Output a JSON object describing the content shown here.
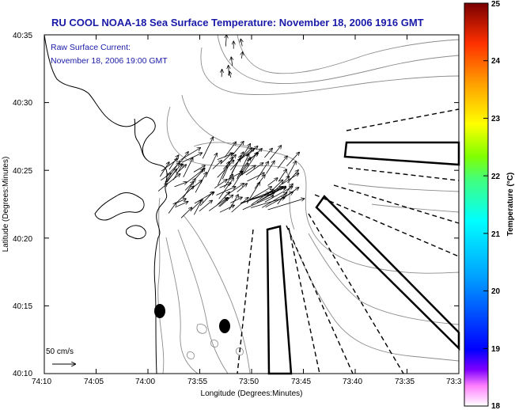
{
  "title": "RU COOL  NOAA-18  Sea Surface Temperature:  November 18, 2006 1916 GMT",
  "current_legend": {
    "line1": "Raw Surface Current:",
    "line2": "November 18, 2006 19:00 GMT"
  },
  "scale_label": "50 cm/s",
  "axes": {
    "xlabel": "Longitude (Degrees:Minutes)",
    "ylabel": "Latitude (Degrees:Minutes)",
    "xticks": [
      "74:10",
      "74:05",
      "74:00",
      "73:55",
      "73:50",
      "73:45",
      "73:40",
      "73:35",
      "73:3"
    ],
    "yticks": [
      "40:35",
      "40:30",
      "40:25",
      "40:20",
      "40:15",
      "40:10"
    ]
  },
  "colorbar": {
    "label": "Temperature (°C)",
    "min": 18,
    "max": 25,
    "ticks": [
      "25",
      "24",
      "23",
      "22",
      "21",
      "20",
      "19",
      "18"
    ]
  },
  "colors": {
    "title_text": "#1a1aa8",
    "frame": "#000000",
    "contour": "#8c8c8c",
    "coastline": "#000000"
  }
}
